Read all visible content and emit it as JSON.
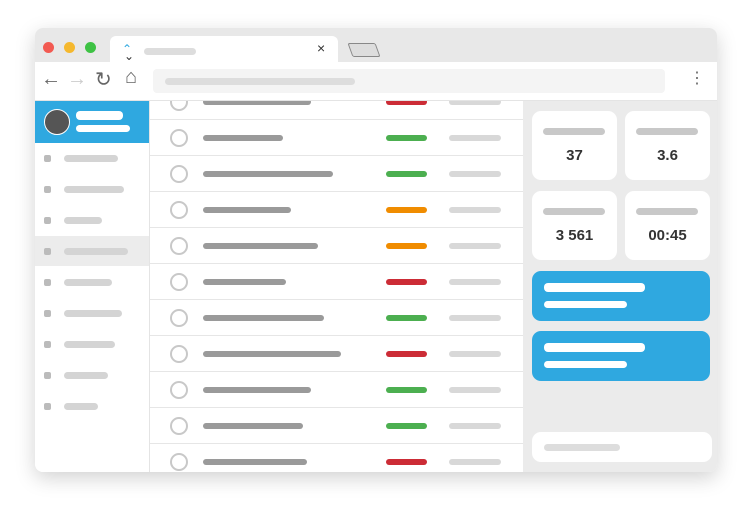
{
  "stats": [
    "37",
    "3.6",
    "3 561",
    "00:45"
  ]
}
